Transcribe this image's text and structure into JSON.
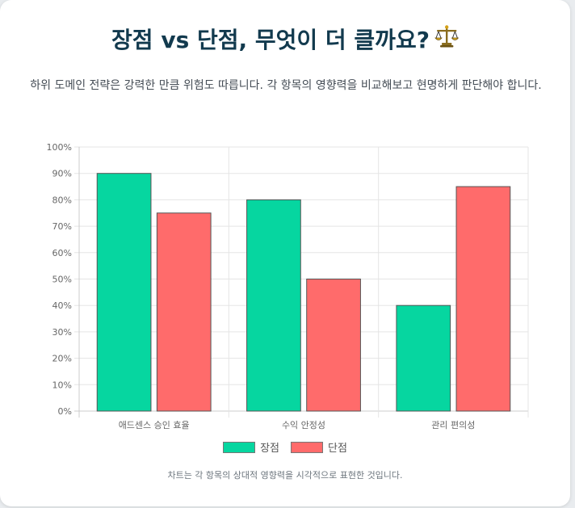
{
  "header": {
    "title": "장점 vs 단점, 무엇이 더 클까요?",
    "title_icon": "balance-scale-icon",
    "subtitle": "하위 도메인 전략은 강력한 만큼 위험도 따릅니다. 각 항목의 영향력을 비교해보고 현명하게 판단해야 합니다."
  },
  "footnote": "차트는 각 항목의 상대적 영향력을 시각적으로 표현한 것입니다.",
  "chart_data": {
    "type": "bar",
    "title": "",
    "xlabel": "",
    "ylabel": "",
    "categories": [
      "애드센스 승인 효율",
      "수익 안정성",
      "관리 편의성"
    ],
    "series": [
      {
        "name": "장점",
        "values": [
          90,
          80,
          40
        ],
        "color": "#06d6a0"
      },
      {
        "name": "단점",
        "values": [
          75,
          50,
          85
        ],
        "color": "#ff6b6b"
      }
    ],
    "ylim": [
      0,
      100
    ],
    "yticks": [
      0,
      10,
      20,
      30,
      40,
      50,
      60,
      70,
      80,
      90,
      100
    ],
    "ytick_suffix": "%",
    "grid": true,
    "legend_position": "bottom"
  }
}
